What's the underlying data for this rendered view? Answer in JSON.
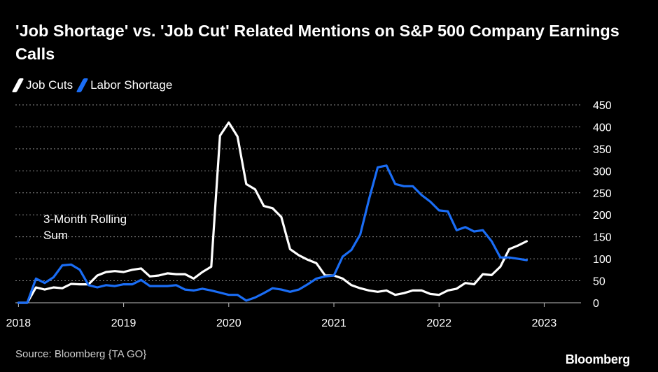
{
  "header": {
    "title": "'Job Shortage' vs. 'Job Cut' Related Mentions on S&P 500 Company Earnings Calls"
  },
  "legend": {
    "items": [
      {
        "label": "Job Cuts",
        "color": "#ffffff"
      },
      {
        "label": "Labor Shortage",
        "color": "#1a6df5"
      }
    ]
  },
  "annotation": {
    "line1": "3-Month Rolling",
    "line2": "Sum"
  },
  "footer": {
    "source": "Source: Bloomberg {TA GO}",
    "brand": "Bloomberg"
  },
  "chart_data": {
    "type": "line",
    "title": "'Job Shortage' vs. 'Job Cut' Related Mentions on S&P 500 Company Earnings Calls",
    "xlabel": "",
    "ylabel": "",
    "y_axis_position": "right",
    "ylim": [
      0,
      450
    ],
    "xlim": [
      "2018-01",
      "2023-05"
    ],
    "y_ticks": [
      0,
      50,
      100,
      150,
      200,
      250,
      300,
      350,
      400,
      450
    ],
    "x_ticks": [
      "2018",
      "2019",
      "2020",
      "2021",
      "2022",
      "2023"
    ],
    "grid": "horizontal dotted",
    "legend_position": "top-left",
    "annotation": "3-Month Rolling Sum",
    "series": [
      {
        "name": "Job Cuts",
        "color": "#ffffff",
        "points": [
          [
            "2018-01",
            0
          ],
          [
            "2018-02",
            0
          ],
          [
            "2018-03",
            35
          ],
          [
            "2018-04",
            30
          ],
          [
            "2018-05",
            35
          ],
          [
            "2018-06",
            33
          ],
          [
            "2018-07",
            43
          ],
          [
            "2018-08",
            42
          ],
          [
            "2018-09",
            42
          ],
          [
            "2018-10",
            62
          ],
          [
            "2018-11",
            70
          ],
          [
            "2018-12",
            72
          ],
          [
            "2019-01",
            70
          ],
          [
            "2019-02",
            75
          ],
          [
            "2019-03",
            78
          ],
          [
            "2019-04",
            60
          ],
          [
            "2019-05",
            62
          ],
          [
            "2019-06",
            67
          ],
          [
            "2019-07",
            65
          ],
          [
            "2019-08",
            65
          ],
          [
            "2019-09",
            55
          ],
          [
            "2019-10",
            70
          ],
          [
            "2019-11",
            82
          ],
          [
            "2019-12",
            380
          ],
          [
            "2020-01",
            410
          ],
          [
            "2020-02",
            378
          ],
          [
            "2020-03",
            270
          ],
          [
            "2020-04",
            258
          ],
          [
            "2020-05",
            220
          ],
          [
            "2020-06",
            215
          ],
          [
            "2020-07",
            195
          ],
          [
            "2020-08",
            122
          ],
          [
            "2020-09",
            108
          ],
          [
            "2020-10",
            98
          ],
          [
            "2020-11",
            90
          ],
          [
            "2020-12",
            62
          ],
          [
            "2021-01",
            62
          ],
          [
            "2021-02",
            55
          ],
          [
            "2021-03",
            40
          ],
          [
            "2021-04",
            33
          ],
          [
            "2021-05",
            28
          ],
          [
            "2021-06",
            25
          ],
          [
            "2021-07",
            28
          ],
          [
            "2021-08",
            18
          ],
          [
            "2021-09",
            22
          ],
          [
            "2021-10",
            28
          ],
          [
            "2021-11",
            28
          ],
          [
            "2021-12",
            20
          ],
          [
            "2022-01",
            18
          ],
          [
            "2022-02",
            28
          ],
          [
            "2022-03",
            32
          ],
          [
            "2022-04",
            45
          ],
          [
            "2022-05",
            42
          ],
          [
            "2022-06",
            65
          ],
          [
            "2022-07",
            63
          ],
          [
            "2022-08",
            82
          ],
          [
            "2022-09",
            122
          ],
          [
            "2022-10",
            130
          ],
          [
            "2022-11",
            140
          ]
        ]
      },
      {
        "name": "Labor Shortage",
        "color": "#1a6df5",
        "points": [
          [
            "2018-01",
            0
          ],
          [
            "2018-02",
            0
          ],
          [
            "2018-03",
            55
          ],
          [
            "2018-04",
            45
          ],
          [
            "2018-05",
            58
          ],
          [
            "2018-06",
            85
          ],
          [
            "2018-07",
            87
          ],
          [
            "2018-08",
            75
          ],
          [
            "2018-09",
            40
          ],
          [
            "2018-10",
            35
          ],
          [
            "2018-11",
            40
          ],
          [
            "2018-12",
            38
          ],
          [
            "2019-01",
            42
          ],
          [
            "2019-02",
            42
          ],
          [
            "2019-03",
            52
          ],
          [
            "2019-04",
            38
          ],
          [
            "2019-05",
            38
          ],
          [
            "2019-06",
            38
          ],
          [
            "2019-07",
            40
          ],
          [
            "2019-08",
            30
          ],
          [
            "2019-09",
            28
          ],
          [
            "2019-10",
            32
          ],
          [
            "2019-11",
            28
          ],
          [
            "2019-12",
            23
          ],
          [
            "2020-01",
            18
          ],
          [
            "2020-02",
            18
          ],
          [
            "2020-03",
            5
          ],
          [
            "2020-04",
            12
          ],
          [
            "2020-05",
            22
          ],
          [
            "2020-06",
            33
          ],
          [
            "2020-07",
            30
          ],
          [
            "2020-08",
            25
          ],
          [
            "2020-09",
            30
          ],
          [
            "2020-10",
            42
          ],
          [
            "2020-11",
            55
          ],
          [
            "2020-12",
            60
          ],
          [
            "2021-01",
            62
          ],
          [
            "2021-02",
            105
          ],
          [
            "2021-03",
            120
          ],
          [
            "2021-04",
            155
          ],
          [
            "2021-05",
            235
          ],
          [
            "2021-06",
            308
          ],
          [
            "2021-07",
            312
          ],
          [
            "2021-08",
            270
          ],
          [
            "2021-09",
            265
          ],
          [
            "2021-10",
            265
          ],
          [
            "2021-11",
            245
          ],
          [
            "2021-12",
            230
          ],
          [
            "2022-01",
            210
          ],
          [
            "2022-02",
            208
          ],
          [
            "2022-03",
            165
          ],
          [
            "2022-04",
            172
          ],
          [
            "2022-05",
            162
          ],
          [
            "2022-06",
            165
          ],
          [
            "2022-07",
            140
          ],
          [
            "2022-08",
            103
          ],
          [
            "2022-09",
            103
          ],
          [
            "2022-10",
            100
          ],
          [
            "2022-11",
            97
          ]
        ]
      }
    ]
  }
}
